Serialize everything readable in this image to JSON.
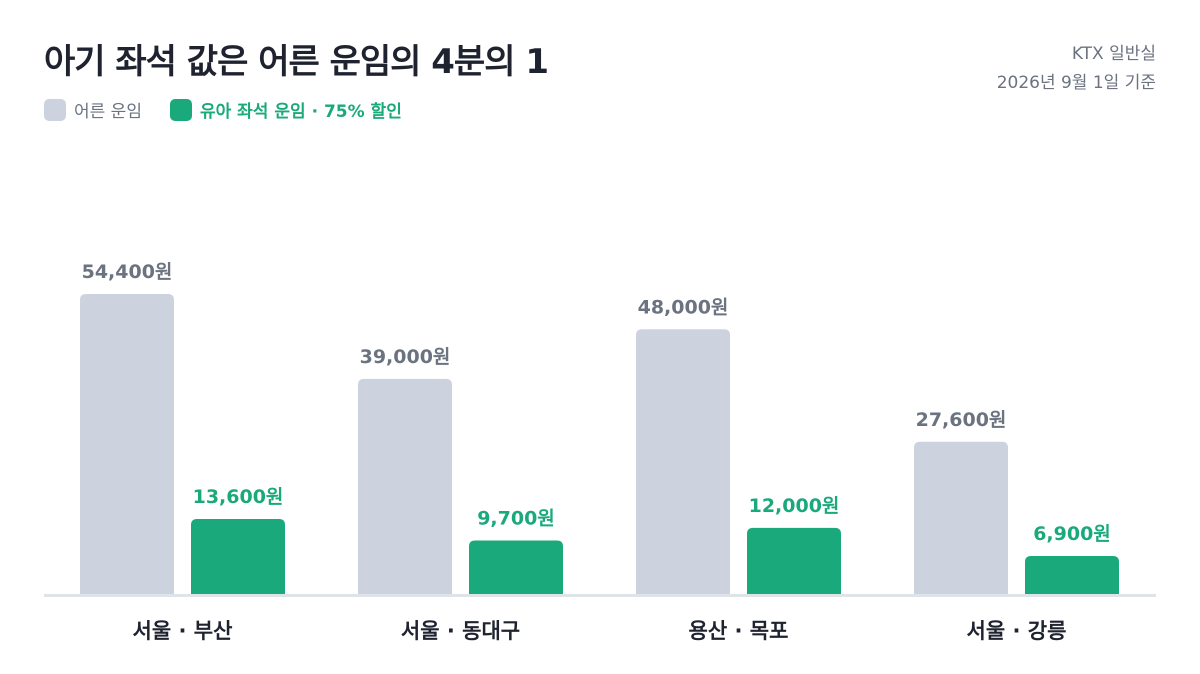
{
  "title": "아기 좌석 값은 어른 운임의 4분의 1",
  "meta": {
    "line1": "KTX 일반실",
    "line2": "2026년 9월 1일 기준"
  },
  "legend": {
    "adult_label": "어른 운임",
    "child_label": "유아 좌석 운임 · 75% 할인"
  },
  "colors": {
    "adult": "#cdd3de",
    "child": "#1aa97b",
    "adult_label": "#6b7280",
    "child_label": "#1aa97b",
    "axis": "#dfe3ea",
    "category": "#1f2330"
  },
  "chart_data": {
    "type": "bar",
    "categories": [
      "서울 · 부산",
      "서울 · 동대구",
      "용산 · 목포",
      "서울 · 강릉"
    ],
    "series": [
      {
        "name": "어른 운임",
        "values": [
          54400,
          39000,
          48000,
          27600
        ],
        "labels": [
          "54,400원",
          "39,000원",
          "48,000원",
          "27,600원"
        ]
      },
      {
        "name": "유아 좌석 운임 · 75% 할인",
        "values": [
          13600,
          9700,
          12000,
          6900
        ],
        "labels": [
          "13,600원",
          "9,700원",
          "12,000원",
          "6,900원"
        ]
      }
    ],
    "ylim": [
      0,
      54400
    ],
    "grid": false,
    "legend_position": "top-left"
  }
}
